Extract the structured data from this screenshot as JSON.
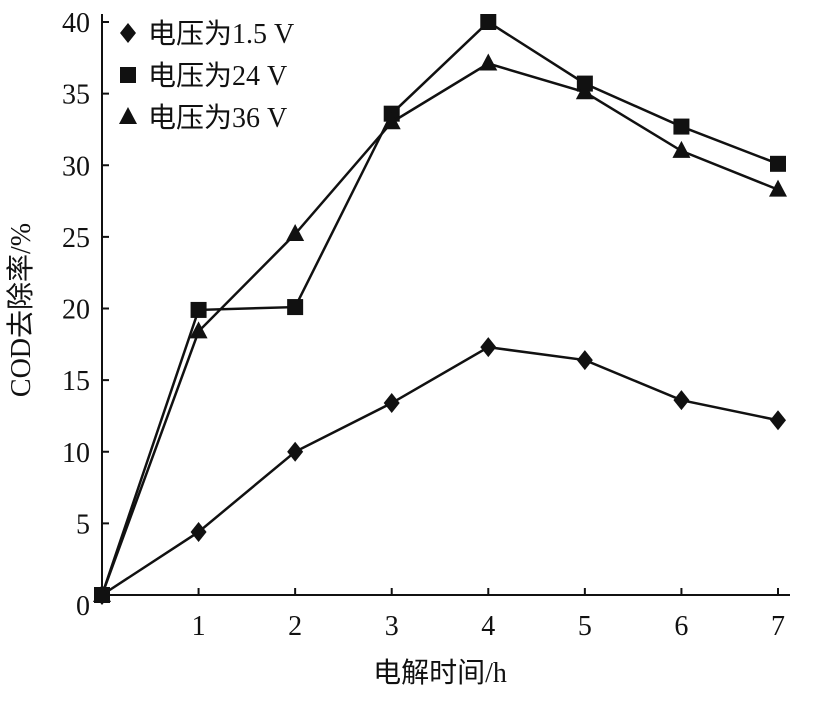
{
  "chart_data": {
    "type": "line",
    "title": "",
    "xlabel": "电解时间/h",
    "ylabel": "COD去除率/%",
    "x": [
      0,
      1,
      2,
      3,
      4,
      5,
      6,
      7
    ],
    "xticks": [
      "1",
      "2",
      "3",
      "4",
      "5",
      "6",
      "7"
    ],
    "yticks": [
      "0",
      "5",
      "10",
      "15",
      "20",
      "25",
      "30",
      "35",
      "40"
    ],
    "xlim": [
      0,
      7
    ],
    "ylim": [
      0,
      40
    ],
    "grid": false,
    "legend_position": "top-left",
    "color": "#111111",
    "series": [
      {
        "name": "电压为1.5 V",
        "marker": "diamond",
        "values": [
          0,
          4.4,
          10.0,
          13.4,
          17.3,
          16.4,
          13.6,
          12.2
        ]
      },
      {
        "name": "电压为24 V",
        "marker": "square",
        "values": [
          0,
          19.9,
          20.1,
          33.6,
          40.0,
          35.7,
          32.7,
          30.1
        ]
      },
      {
        "name": "电压为36 V",
        "marker": "triangle",
        "values": [
          0,
          18.4,
          25.2,
          33.0,
          37.1,
          35.1,
          31.0,
          28.3
        ]
      }
    ]
  }
}
